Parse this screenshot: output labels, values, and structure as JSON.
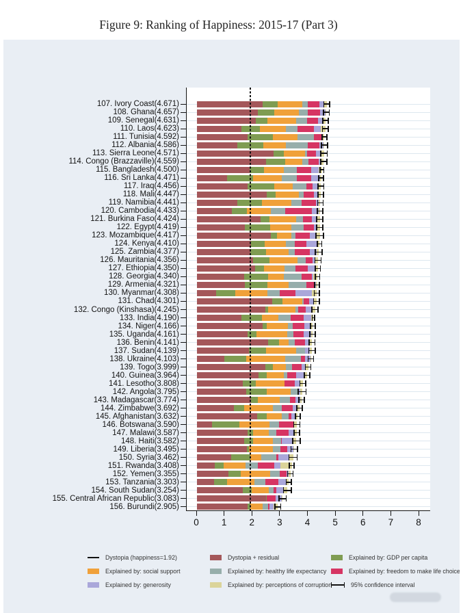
{
  "figure_title": "Figure 9: Ranking of Happiness: 2015-17 (Part 3)",
  "chart_data": {
    "type": "bar",
    "orientation": "horizontal",
    "stacked": true,
    "title": "Figure 9: Ranking of Happiness: 2015-17 (Part 3)",
    "xlabel": "",
    "ylabel": "",
    "xlim": [
      0,
      8
    ],
    "x_ticks": [
      "0",
      "1",
      "2",
      "3",
      "4",
      "5",
      "6",
      "7",
      "8"
    ],
    "grid": "horizontal-row-guides",
    "dystopia_line_value": 1.92,
    "segment_keys": [
      "dystopia_residual",
      "gdp",
      "social_support",
      "healthy_life_expectancy",
      "freedom",
      "generosity",
      "corruption"
    ],
    "segment_colors": {
      "dystopia_residual": "#a4575a",
      "gdp": "#7f9c52",
      "social_support": "#f0a13a",
      "healthy_life_expectancy": "#97aeab",
      "freedom": "#d63563",
      "generosity": "#aaa7da",
      "corruption": "#dbd49a"
    },
    "legend_position": "bottom",
    "legend": [
      {
        "icon": "line",
        "color": "#111111",
        "label": "Dystopia (happiness=1.92)"
      },
      {
        "icon": "swatch",
        "color": "#a4575a",
        "label": "Dystopia + residual"
      },
      {
        "icon": "swatch",
        "color": "#7f9c52",
        "label": "Explained by: GDP per capita"
      },
      {
        "icon": "swatch",
        "color": "#f0a13a",
        "label": "Explained by: social support"
      },
      {
        "icon": "swatch",
        "color": "#97aeab",
        "label": "Explained by: healthy life expectancy"
      },
      {
        "icon": "swatch",
        "color": "#d63563",
        "label": "Explained by: freedom to make life choices"
      },
      {
        "icon": "swatch",
        "color": "#aaa7da",
        "label": "Explained by: generosity"
      },
      {
        "icon": "swatch",
        "color": "#dbd49a",
        "label": "Explained by: perceptions of corruption"
      },
      {
        "icon": "ci",
        "color": "#111111",
        "label": "95% confidence interval"
      }
    ],
    "countries": [
      {
        "rank": 107,
        "name": "Ivory Coast",
        "score": "4.671",
        "segments": [
          2.37,
          0.54,
          0.87,
          0.21,
          0.42,
          0.14,
          0.12
        ],
        "ci": 0.12
      },
      {
        "rank": 108,
        "name": "Ghana",
        "score": "4.657",
        "segments": [
          2.18,
          0.59,
          0.9,
          0.31,
          0.44,
          0.2,
          0.04
        ],
        "ci": 0.12
      },
      {
        "rank": 109,
        "name": "Senegal",
        "score": "4.631",
        "segments": [
          2.11,
          0.43,
          1.02,
          0.41,
          0.38,
          0.17,
          0.11
        ],
        "ci": 0.12
      },
      {
        "rank": 110,
        "name": "Laos",
        "score": "4.623",
        "segments": [
          1.6,
          0.67,
          0.93,
          0.43,
          0.59,
          0.23,
          0.17
        ],
        "ci": 0.12
      },
      {
        "rank": 111,
        "name": "Tunisia",
        "score": "4.592",
        "segments": [
          1.83,
          0.89,
          0.9,
          0.6,
          0.27,
          0.04,
          0.06
        ],
        "ci": 0.11
      },
      {
        "rank": 112,
        "name": "Albania",
        "score": "4.586",
        "segments": [
          1.46,
          0.92,
          0.82,
          0.79,
          0.42,
          0.15,
          0.03
        ],
        "ci": 0.13
      },
      {
        "rank": 113,
        "name": "Sierra Leone",
        "score": "4.571",
        "segments": [
          2.75,
          0.37,
          0.76,
          0.08,
          0.33,
          0.2,
          0.08
        ],
        "ci": 0.14
      },
      {
        "rank": 114,
        "name": "Congo (Brazzaville)",
        "score": "4.559",
        "segments": [
          2.49,
          0.68,
          0.62,
          0.21,
          0.38,
          0.11,
          0.07
        ],
        "ci": 0.13
      },
      {
        "rank": 115,
        "name": "Bangladesh",
        "score": "4.500",
        "segments": [
          1.89,
          0.53,
          0.71,
          0.46,
          0.53,
          0.26,
          0.12
        ],
        "ci": 0.09
      },
      {
        "rank": 116,
        "name": "Sri Lanka",
        "score": "4.471",
        "segments": [
          1.09,
          0.92,
          1.03,
          0.56,
          0.51,
          0.31,
          0.05
        ],
        "ci": 0.11
      },
      {
        "rank": 117,
        "name": "Iraq",
        "score": "4.456",
        "segments": [
          1.81,
          0.98,
          0.65,
          0.49,
          0.24,
          0.19,
          0.1
        ],
        "ci": 0.13
      },
      {
        "rank": 118,
        "name": "Mali",
        "score": "4.447",
        "segments": [
          2.51,
          0.31,
          0.85,
          0.16,
          0.38,
          0.14,
          0.1
        ],
        "ci": 0.12
      },
      {
        "rank": 119,
        "name": "Namibia",
        "score": "4.441",
        "segments": [
          1.46,
          0.87,
          1.07,
          0.36,
          0.52,
          0.1,
          0.06
        ],
        "ci": 0.12
      },
      {
        "rank": 120,
        "name": "Cambodia",
        "score": "4.433",
        "segments": [
          1.25,
          0.55,
          0.87,
          0.5,
          0.96,
          0.25,
          0.05
        ],
        "ci": 0.12
      },
      {
        "rank": 121,
        "name": "Burkina Faso",
        "score": "4.424",
        "segments": [
          2.29,
          0.31,
          0.97,
          0.25,
          0.31,
          0.18,
          0.11
        ],
        "ci": 0.13
      },
      {
        "rank": 122,
        "name": "Egypt",
        "score": "4.419",
        "segments": [
          1.72,
          0.92,
          0.75,
          0.46,
          0.36,
          0.11,
          0.1
        ],
        "ci": 0.13
      },
      {
        "rank": 123,
        "name": "Mozambique",
        "score": "4.417",
        "segments": [
          2.67,
          0.2,
          0.53,
          0.15,
          0.52,
          0.21,
          0.14
        ],
        "ci": 0.15
      },
      {
        "rank": 124,
        "name": "Kenya",
        "score": "4.410",
        "segments": [
          1.94,
          0.49,
          0.78,
          0.3,
          0.43,
          0.41,
          0.06
        ],
        "ci": 0.1
      },
      {
        "rank": 125,
        "name": "Zambia",
        "score": "4.377",
        "segments": [
          1.93,
          0.56,
          0.8,
          0.22,
          0.54,
          0.25,
          0.08
        ],
        "ci": 0.14
      },
      {
        "rank": 126,
        "name": "Mauritania",
        "score": "4.356",
        "segments": [
          2.03,
          0.59,
          1.01,
          0.29,
          0.25,
          0.1,
          0.09
        ],
        "ci": 0.13
      },
      {
        "rank": 127,
        "name": "Ethiopia",
        "score": "4.350",
        "segments": [
          2.09,
          0.31,
          0.75,
          0.39,
          0.45,
          0.25,
          0.11
        ],
        "ci": 0.11
      },
      {
        "rank": 128,
        "name": "Georgia",
        "score": "4.340",
        "segments": [
          1.7,
          0.85,
          0.57,
          0.64,
          0.38,
          0.04,
          0.16
        ],
        "ci": 0.1
      },
      {
        "rank": 129,
        "name": "Armenia",
        "score": "4.321",
        "segments": [
          1.72,
          0.82,
          0.75,
          0.66,
          0.26,
          0.08,
          0.03
        ],
        "ci": 0.11
      },
      {
        "rank": 130,
        "name": "Myanmar",
        "score": "4.308",
        "segments": [
          0.69,
          0.68,
          1.17,
          0.43,
          0.58,
          0.59,
          0.17
        ],
        "ci": 0.11
      },
      {
        "rank": 131,
        "name": "Chad",
        "score": "4.301",
        "segments": [
          2.71,
          0.36,
          0.73,
          0.05,
          0.19,
          0.18,
          0.08
        ],
        "ci": 0.12
      },
      {
        "rank": 132,
        "name": "Congo (Kinshasa)",
        "score": "4.245",
        "segments": [
          2.46,
          0.09,
          1.0,
          0.1,
          0.27,
          0.25,
          0.08
        ],
        "ci": 0.13
      },
      {
        "rank": 133,
        "name": "India",
        "score": "4.190",
        "segments": [
          1.61,
          0.72,
          0.59,
          0.44,
          0.48,
          0.26,
          0.09
        ],
        "ci": 0.06
      },
      {
        "rank": 134,
        "name": "Niger",
        "score": "4.166",
        "segments": [
          2.37,
          0.14,
          0.77,
          0.16,
          0.43,
          0.2,
          0.1
        ],
        "ci": 0.11
      },
      {
        "rank": 135,
        "name": "Uganda",
        "score": "4.161",
        "segments": [
          1.83,
          0.32,
          1.09,
          0.24,
          0.36,
          0.26,
          0.06
        ],
        "ci": 0.12
      },
      {
        "rank": 136,
        "name": "Benin",
        "score": "4.141",
        "segments": [
          2.57,
          0.39,
          0.35,
          0.22,
          0.35,
          0.18,
          0.08
        ],
        "ci": 0.13
      },
      {
        "rank": 137,
        "name": "Sudan",
        "score": "4.139",
        "segments": [
          1.87,
          0.61,
          1.1,
          0.3,
          0.02,
          0.15,
          0.09
        ],
        "ci": 0.14
      },
      {
        "rank": 138,
        "name": "Ukraine",
        "score": "4.103",
        "segments": [
          0.98,
          0.79,
          1.41,
          0.55,
          0.15,
          0.21,
          0.01
        ],
        "ci": 0.12
      },
      {
        "rank": 139,
        "name": "Togo",
        "score": "3.999",
        "segments": [
          2.47,
          0.26,
          0.47,
          0.22,
          0.35,
          0.14,
          0.09
        ],
        "ci": 0.12
      },
      {
        "rank": 140,
        "name": "Guinea",
        "score": "3.964",
        "segments": [
          2.21,
          0.31,
          0.6,
          0.14,
          0.31,
          0.28,
          0.11
        ],
        "ci": 0.12
      },
      {
        "rank": 141,
        "name": "Lesotho",
        "score": "3.808",
        "segments": [
          1.64,
          0.47,
          1.03,
          0.0,
          0.39,
          0.16,
          0.12
        ],
        "ci": 0.13
      },
      {
        "rank": 142,
        "name": "Angola",
        "score": "3.795",
        "segments": [
          1.77,
          0.73,
          0.88,
          0.24,
          0.0,
          0.1,
          0.07
        ],
        "ci": 0.16
      },
      {
        "rank": 143,
        "name": "Madagascar",
        "score": "3.774",
        "segments": [
          1.94,
          0.26,
          0.77,
          0.38,
          0.19,
          0.17,
          0.06
        ],
        "ci": 0.12
      },
      {
        "rank": 144,
        "name": "Zimbabwe",
        "score": "3.692",
        "segments": [
          1.33,
          0.36,
          1.04,
          0.31,
          0.41,
          0.15,
          0.09
        ],
        "ci": 0.12
      },
      {
        "rank": 145,
        "name": "Afghanistan",
        "score": "3.632",
        "segments": [
          2.17,
          0.33,
          0.54,
          0.26,
          0.09,
          0.19,
          0.05
        ],
        "ci": 0.1
      },
      {
        "rank": 146,
        "name": "Botswana",
        "score": "3.590",
        "segments": [
          0.54,
          0.99,
          1.08,
          0.34,
          0.51,
          0.03,
          0.1
        ],
        "ci": 0.13
      },
      {
        "rank": 147,
        "name": "Malawi",
        "score": "3.587",
        "segments": [
          1.83,
          0.19,
          0.56,
          0.27,
          0.44,
          0.21,
          0.09
        ],
        "ci": 0.12
      },
      {
        "rank": 148,
        "name": "Haiti",
        "score": "3.582",
        "segments": [
          1.69,
          0.32,
          0.71,
          0.3,
          0.03,
          0.42,
          0.11
        ],
        "ci": 0.15
      },
      {
        "rank": 149,
        "name": "Liberia",
        "score": "3.495",
        "segments": [
          1.8,
          0.08,
          0.86,
          0.27,
          0.24,
          0.22,
          0.03
        ],
        "ci": 0.14
      },
      {
        "rank": 150,
        "name": "Syria",
        "score": "3.462",
        "segments": [
          1.24,
          0.69,
          0.38,
          0.54,
          0.09,
          0.38,
          0.14
        ],
        "ci": 0.17
      },
      {
        "rank": 151,
        "name": "Rwanda",
        "score": "3.408",
        "segments": [
          0.64,
          0.33,
          0.77,
          0.46,
          0.58,
          0.22,
          0.41
        ],
        "ci": 0.1
      },
      {
        "rank": 152,
        "name": "Yemen",
        "score": "3.355",
        "segments": [
          1.13,
          0.44,
          1.07,
          0.34,
          0.24,
          0.08,
          0.06
        ],
        "ci": 0.12
      },
      {
        "rank": 153,
        "name": "Tanzania",
        "score": "3.303",
        "segments": [
          0.62,
          0.46,
          0.99,
          0.38,
          0.48,
          0.27,
          0.1
        ],
        "ci": 0.11
      },
      {
        "rank": 154,
        "name": "South Sudan",
        "score": "3.254",
        "segments": [
          1.64,
          0.34,
          0.6,
          0.18,
          0.1,
          0.26,
          0.13
        ],
        "ci": 0.16
      },
      {
        "rank": 155,
        "name": "Central African Republic",
        "score": "3.083",
        "segments": [
          2.49,
          0.02,
          0.0,
          0.01,
          0.31,
          0.22,
          0.03
        ],
        "ci": 0.15
      },
      {
        "rank": 156,
        "name": "Burundi",
        "score": "2.905",
        "segments": [
          1.82,
          0.09,
          0.46,
          0.2,
          0.04,
          0.15,
          0.15
        ],
        "ci": 0.12
      }
    ]
  }
}
